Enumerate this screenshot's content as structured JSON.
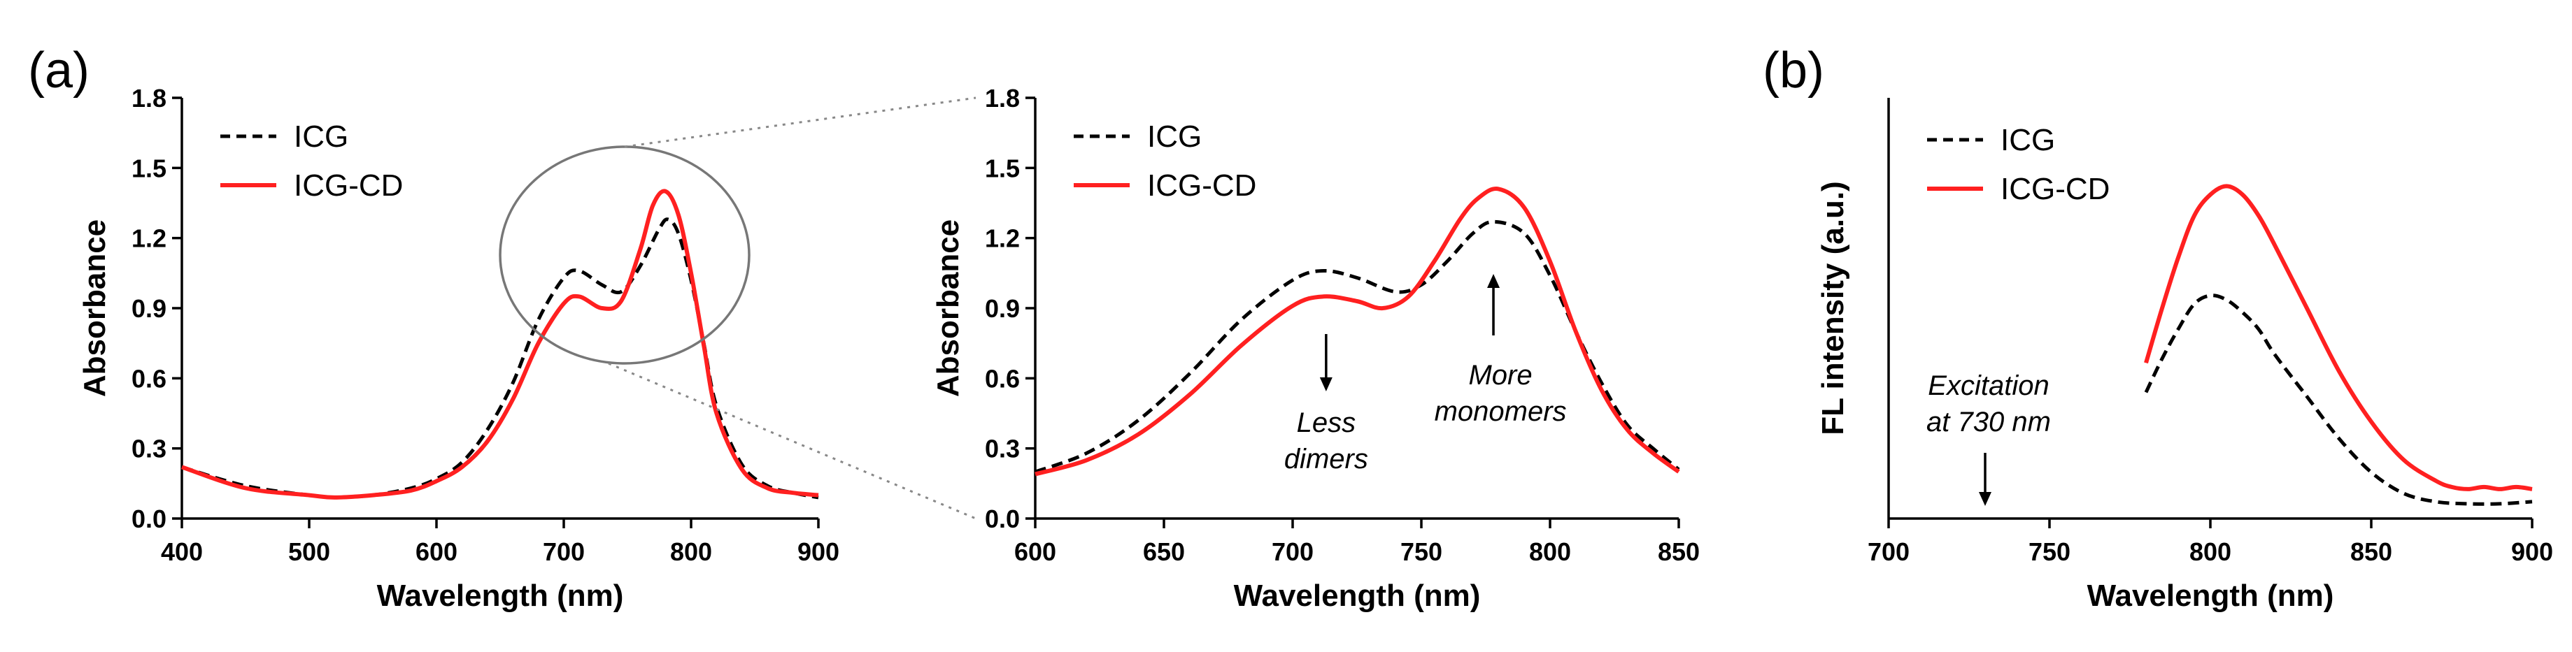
{
  "panel_labels": [
    "(a)",
    "(b)"
  ],
  "chart_data": [
    {
      "id": "a_full",
      "type": "line",
      "xlabel": "Wavelength (nm)",
      "ylabel": "Absorbance",
      "xlim": [
        400,
        900
      ],
      "ylim": [
        0,
        1.8
      ],
      "x_ticks": [
        400,
        500,
        600,
        700,
        800,
        900
      ],
      "x_tick_labels": [
        "400",
        "500",
        "600",
        "700",
        "800",
        "900"
      ],
      "y_ticks": [
        0,
        0.3,
        0.6,
        0.9,
        1.2,
        1.5,
        1.8
      ],
      "y_tick_labels": [
        "0.0",
        "0.3",
        "0.6",
        "0.9",
        "1.2",
        "1.5",
        "1.8"
      ],
      "legend": [
        "ICG",
        "ICG-CD"
      ],
      "series": [
        {
          "name": "ICG",
          "color": "#000000",
          "dash": true,
          "x": [
            400,
            450,
            500,
            520,
            550,
            580,
            600,
            620,
            640,
            660,
            680,
            700,
            712,
            730,
            745,
            760,
            775,
            782,
            790,
            800,
            810,
            820,
            840,
            860,
            880,
            900
          ],
          "y": [
            0.22,
            0.14,
            0.1,
            0.09,
            0.1,
            0.13,
            0.17,
            0.24,
            0.38,
            0.58,
            0.85,
            1.03,
            1.06,
            1.0,
            0.97,
            1.08,
            1.24,
            1.28,
            1.22,
            1.02,
            0.75,
            0.48,
            0.23,
            0.14,
            0.11,
            0.09
          ]
        },
        {
          "name": "ICG-CD",
          "color": "#ff2020",
          "dash": false,
          "x": [
            400,
            450,
            500,
            520,
            550,
            580,
            600,
            620,
            640,
            660,
            680,
            700,
            712,
            730,
            745,
            760,
            770,
            780,
            790,
            800,
            810,
            820,
            840,
            860,
            880,
            900
          ],
          "y": [
            0.22,
            0.13,
            0.1,
            0.09,
            0.1,
            0.12,
            0.16,
            0.22,
            0.33,
            0.51,
            0.75,
            0.92,
            0.95,
            0.9,
            0.93,
            1.15,
            1.34,
            1.4,
            1.3,
            1.05,
            0.74,
            0.45,
            0.21,
            0.13,
            0.11,
            0.1
          ]
        }
      ]
    },
    {
      "id": "a_zoom",
      "type": "line",
      "xlabel": "Wavelength (nm)",
      "ylabel": "Absorbance",
      "xlim": [
        600,
        850
      ],
      "ylim": [
        0,
        1.8
      ],
      "x_ticks": [
        600,
        650,
        700,
        750,
        800,
        850
      ],
      "x_tick_labels": [
        "600",
        "650",
        "700",
        "750",
        "800",
        "850"
      ],
      "y_ticks": [
        0,
        0.3,
        0.6,
        0.9,
        1.2,
        1.5,
        1.8
      ],
      "y_tick_labels": [
        "0.0",
        "0.3",
        "0.6",
        "0.9",
        "1.2",
        "1.5",
        "1.8"
      ],
      "legend": [
        "ICG",
        "ICG-CD"
      ],
      "annotations": [
        {
          "lines": [
            "Less",
            "dimers"
          ],
          "arrow": "down",
          "x": 713
        },
        {
          "lines": [
            "More",
            "monomers"
          ],
          "arrow": "up",
          "x": 778
        }
      ],
      "series": [
        {
          "name": "ICG",
          "color": "#000000",
          "dash": true,
          "x": [
            600,
            620,
            640,
            660,
            680,
            700,
            712,
            725,
            740,
            750,
            760,
            770,
            778,
            790,
            800,
            810,
            820,
            830,
            840,
            850
          ],
          "y": [
            0.2,
            0.28,
            0.42,
            0.62,
            0.85,
            1.02,
            1.06,
            1.03,
            0.97,
            1.0,
            1.1,
            1.22,
            1.27,
            1.22,
            1.04,
            0.8,
            0.58,
            0.4,
            0.3,
            0.21
          ]
        },
        {
          "name": "ICG-CD",
          "color": "#ff2020",
          "dash": false,
          "x": [
            600,
            620,
            640,
            660,
            680,
            700,
            712,
            725,
            735,
            745,
            755,
            765,
            772,
            780,
            790,
            800,
            810,
            820,
            830,
            840,
            850
          ],
          "y": [
            0.19,
            0.25,
            0.36,
            0.53,
            0.74,
            0.91,
            0.95,
            0.93,
            0.9,
            0.95,
            1.1,
            1.28,
            1.37,
            1.41,
            1.33,
            1.1,
            0.8,
            0.55,
            0.38,
            0.28,
            0.2
          ]
        }
      ]
    },
    {
      "id": "b_fl",
      "type": "line",
      "xlabel": "Wavelength (nm)",
      "ylabel": "FL intensity (a.u.)",
      "xlim": [
        700,
        900
      ],
      "ylim": [
        0,
        1.0
      ],
      "x_ticks": [
        700,
        750,
        800,
        850,
        900
      ],
      "x_tick_labels": [
        "700",
        "750",
        "800",
        "850",
        "900"
      ],
      "y_ticks": [],
      "y_tick_labels": [],
      "legend": [
        "ICG",
        "ICG-CD"
      ],
      "annotations": [
        {
          "lines": [
            "Excitation",
            "at 730 nm"
          ],
          "arrow": "down",
          "x": 730
        }
      ],
      "series": [
        {
          "name": "ICG",
          "color": "#000000",
          "dash": true,
          "x": [
            780,
            785,
            790,
            795,
            800,
            805,
            810,
            815,
            820,
            830,
            840,
            850,
            860,
            870,
            880,
            890,
            900
          ],
          "y": [
            0.3,
            0.38,
            0.45,
            0.51,
            0.53,
            0.52,
            0.49,
            0.45,
            0.39,
            0.29,
            0.19,
            0.11,
            0.06,
            0.04,
            0.035,
            0.035,
            0.04
          ]
        },
        {
          "name": "ICG-CD",
          "color": "#ff2020",
          "dash": false,
          "x": [
            780,
            785,
            790,
            795,
            800,
            805,
            810,
            815,
            820,
            830,
            840,
            850,
            860,
            870,
            875,
            880,
            885,
            890,
            895,
            900
          ],
          "y": [
            0.37,
            0.5,
            0.62,
            0.72,
            0.77,
            0.79,
            0.77,
            0.72,
            0.65,
            0.5,
            0.35,
            0.23,
            0.14,
            0.09,
            0.075,
            0.07,
            0.075,
            0.07,
            0.075,
            0.07
          ]
        }
      ]
    }
  ]
}
